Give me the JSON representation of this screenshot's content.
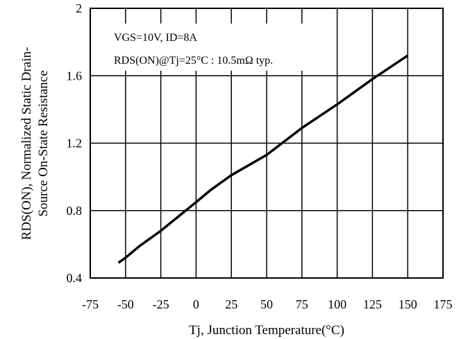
{
  "chart_data": {
    "type": "line",
    "xlabel": "Tj, Junction Temperature(°C)",
    "ylabel_line1": "RDS(ON), Normalized Static Drain-",
    "ylabel_line2": "Source On-State Resistance",
    "xlim": [
      -75,
      175
    ],
    "ylim": [
      0.4,
      2.0
    ],
    "x_ticks": [
      "-75",
      "-50",
      "-25",
      "0",
      "25",
      "50",
      "75",
      "100",
      "125",
      "150",
      "175"
    ],
    "y_ticks": [
      "0.4",
      "0.8",
      "1.2",
      "1.6",
      "2"
    ],
    "grid": true,
    "annotations": [
      "VGS=10V, ID=8A",
      "RDS(ON)@Tj=25°C : 10.5mΩ typ."
    ],
    "series": [
      {
        "x": [
          -55,
          -50,
          -40,
          -25,
          0,
          10,
          25,
          50,
          75,
          100,
          125,
          150
        ],
        "y": [
          0.49,
          0.52,
          0.59,
          0.68,
          0.85,
          0.92,
          1.01,
          1.13,
          1.29,
          1.43,
          1.58,
          1.72
        ]
      }
    ]
  }
}
